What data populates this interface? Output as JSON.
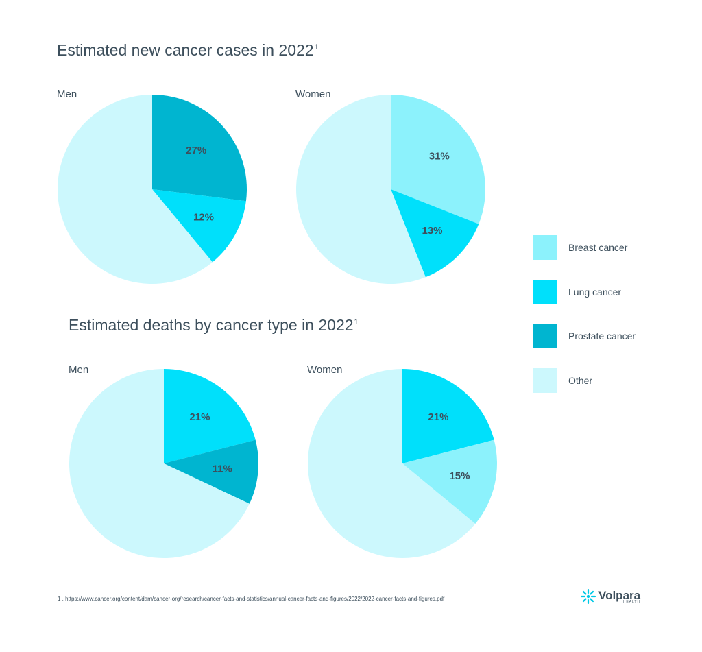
{
  "colors": {
    "Breast cancer": "#8cf2fc",
    "Lung cancer": "#00e0fb",
    "Prostate cancer": "#00b5d0",
    "Other": "#ccf8fd"
  },
  "legend": [
    "Breast cancer",
    "Lung cancer",
    "Prostate cancer",
    "Other"
  ],
  "sections": {
    "cases": {
      "title": "Estimated new cancer cases in 2022",
      "sup": "1"
    },
    "deaths": {
      "title": "Estimated deaths by cancer type in 2022",
      "sup": "1"
    }
  },
  "chart_data": [
    {
      "type": "pie",
      "title": "Estimated new cancer cases in 2022",
      "label": "Men",
      "slices": [
        {
          "name": "Prostate cancer",
          "value": 27,
          "label": "27%"
        },
        {
          "name": "Lung cancer",
          "value": 12,
          "label": "12%"
        },
        {
          "name": "Other",
          "value": 61,
          "label": ""
        }
      ]
    },
    {
      "type": "pie",
      "title": "Estimated new cancer cases in 2022",
      "label": "Women",
      "slices": [
        {
          "name": "Breast cancer",
          "value": 31,
          "label": "31%"
        },
        {
          "name": "Lung cancer",
          "value": 13,
          "label": "13%"
        },
        {
          "name": "Other",
          "value": 56,
          "label": ""
        }
      ]
    },
    {
      "type": "pie",
      "title": "Estimated deaths by cancer type in 2022",
      "label": "Men",
      "slices": [
        {
          "name": "Lung cancer",
          "value": 21,
          "label": "21%"
        },
        {
          "name": "Prostate cancer",
          "value": 11,
          "label": "11%"
        },
        {
          "name": "Other",
          "value": 68,
          "label": ""
        }
      ]
    },
    {
      "type": "pie",
      "title": "Estimated deaths by cancer type in 2022",
      "label": "Women",
      "slices": [
        {
          "name": "Lung cancer",
          "value": 21,
          "label": "21%"
        },
        {
          "name": "Breast cancer",
          "value": 15,
          "label": "15%"
        },
        {
          "name": "Other",
          "value": 64,
          "label": ""
        }
      ]
    }
  ],
  "footnote": "1 .  https://www.cancer.org/content/dam/cancer-org/research/cancer-facts-and-statistics/annual-cancer-facts-and-figures/2022/2022-cancer-facts-and-figures.pdf",
  "logo": {
    "name": "Volpara",
    "sub": "HEALTH",
    "icon": "snowflake-icon"
  }
}
